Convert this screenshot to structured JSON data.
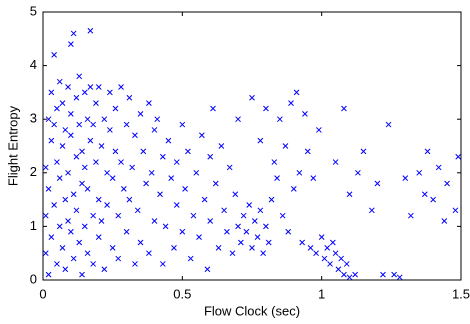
{
  "chart_data": {
    "type": "scatter",
    "xlabel": "Flow Clock (sec)",
    "ylabel": "Flight Entropy",
    "color": "#0000ff",
    "marker": "x",
    "xlim": [
      0,
      1.5
    ],
    "xticks": [
      0,
      0.5,
      1,
      1.5
    ],
    "ylim": [
      0,
      5
    ],
    "yticks": [
      0,
      1,
      2,
      3,
      4,
      5
    ],
    "grid": false,
    "x": [
      0.01,
      0.01,
      0.01,
      0.02,
      0.02,
      0.02,
      0.03,
      0.03,
      0.03,
      0.04,
      0.04,
      0.04,
      0.05,
      0.05,
      0.05,
      0.06,
      0.06,
      0.06,
      0.07,
      0.07,
      0.07,
      0.08,
      0.08,
      0.08,
      0.09,
      0.09,
      0.09,
      0.1,
      0.1,
      0.1,
      0.1,
      0.11,
      0.11,
      0.11,
      0.12,
      0.12,
      0.12,
      0.13,
      0.13,
      0.13,
      0.14,
      0.14,
      0.14,
      0.15,
      0.15,
      0.15,
      0.16,
      0.16,
      0.16,
      0.17,
      0.17,
      0.17,
      0.18,
      0.18,
      0.18,
      0.19,
      0.19,
      0.2,
      0.2,
      0.2,
      0.21,
      0.21,
      0.22,
      0.22,
      0.23,
      0.23,
      0.24,
      0.24,
      0.25,
      0.25,
      0.26,
      0.26,
      0.27,
      0.27,
      0.28,
      0.28,
      0.29,
      0.3,
      0.3,
      0.31,
      0.31,
      0.32,
      0.33,
      0.33,
      0.34,
      0.35,
      0.35,
      0.36,
      0.37,
      0.38,
      0.38,
      0.39,
      0.4,
      0.4,
      0.41,
      0.42,
      0.43,
      0.43,
      0.44,
      0.45,
      0.46,
      0.47,
      0.48,
      0.48,
      0.5,
      0.5,
      0.51,
      0.52,
      0.53,
      0.54,
      0.55,
      0.56,
      0.57,
      0.58,
      0.59,
      0.6,
      0.6,
      0.61,
      0.62,
      0.63,
      0.64,
      0.65,
      0.66,
      0.67,
      0.68,
      0.69,
      0.7,
      0.7,
      0.71,
      0.72,
      0.73,
      0.74,
      0.75,
      0.75,
      0.76,
      0.77,
      0.78,
      0.78,
      0.79,
      0.8,
      0.8,
      0.81,
      0.82,
      0.83,
      0.84,
      0.85,
      0.86,
      0.87,
      0.88,
      0.89,
      0.9,
      0.91,
      0.92,
      0.93,
      0.94,
      0.95,
      0.96,
      0.97,
      0.98,
      0.99,
      1.0,
      1.01,
      1.02,
      1.03,
      1.04,
      1.05,
      1.06,
      1.07,
      1.08,
      1.09,
      1.1,
      1.12,
      1.05,
      1.08,
      1.1,
      1.13,
      1.15,
      1.18,
      1.2,
      1.22,
      1.24,
      1.26,
      1.28,
      1.3,
      1.32,
      1.35,
      1.37,
      1.38,
      1.4,
      1.42,
      1.44,
      1.45,
      1.48,
      1.49
    ],
    "values": [
      0.5,
      1.2,
      2.1,
      3.0,
      0.1,
      1.7,
      2.6,
      3.5,
      0.8,
      1.4,
      2.9,
      4.2,
      0.3,
      2.2,
      3.2,
      1.0,
      1.9,
      3.7,
      0.6,
      2.5,
      3.3,
      1.5,
      2.8,
      0.2,
      3.6,
      1.1,
      2.0,
      4.4,
      0.9,
      2.7,
      3.1,
      1.6,
      4.6,
      0.4,
      2.3,
      3.4,
      1.3,
      0.7,
      2.9,
      3.8,
      1.8,
      0.1,
      2.4,
      3.5,
      1.0,
      2.1,
      3.0,
      0.5,
      1.7,
      2.6,
      4.65,
      3.6,
      1.2,
      2.9,
      0.3,
      2.2,
      3.3,
      1.5,
      3.6,
      0.8,
      2.5,
      1.1,
      3.0,
      0.2,
      2.0,
      1.4,
      2.8,
      3.5,
      0.6,
      1.9,
      2.4,
      3.2,
      1.2,
      0.4,
      2.2,
      3.6,
      1.7,
      2.9,
      0.9,
      3.4,
      1.5,
      2.1,
      0.3,
      2.7,
      1.3,
      3.1,
      0.7,
      2.4,
      1.8,
      3.3,
      0.5,
      2.0,
      1.1,
      2.8,
      3.0,
      1.6,
      0.3,
      2.3,
      1.0,
      2.6,
      1.9,
      0.6,
      2.2,
      1.4,
      2.9,
      0.9,
      1.7,
      2.4,
      0.4,
      1.2,
      2.0,
      0.8,
      2.7,
      1.5,
      0.2,
      2.3,
      1.1,
      3.2,
      1.8,
      0.6,
      2.5,
      1.3,
      0.9,
      2.1,
      0.5,
      1.6,
      1.0,
      3.0,
      0.7,
      1.2,
      0.9,
      1.4,
      0.6,
      3.4,
      1.1,
      0.8,
      1.3,
      2.6,
      0.5,
      1.0,
      3.2,
      0.7,
      1.5,
      2.2,
      1.9,
      3.0,
      1.2,
      2.5,
      0.9,
      3.3,
      1.7,
      3.5,
      2.0,
      0.7,
      3.1,
      2.4,
      0.6,
      1.9,
      0.5,
      2.8,
      0.8,
      0.4,
      0.6,
      0.3,
      0.7,
      0.5,
      0.2,
      0.4,
      0.1,
      0.3,
      0.05,
      0.1,
      2.2,
      3.2,
      1.6,
      2.0,
      2.4,
      1.3,
      1.8,
      0.1,
      2.9,
      0.1,
      0.05,
      1.9,
      1.2,
      2.0,
      1.6,
      2.4,
      1.5,
      2.1,
      1.1,
      1.8,
      1.3,
      2.3
    ]
  }
}
